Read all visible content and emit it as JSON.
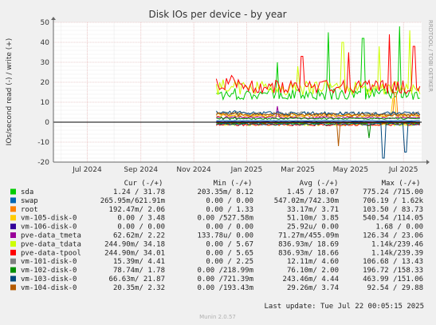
{
  "chart_data": {
    "type": "line",
    "title": "Disk IOs per device - by year",
    "ylabel": "IOs/second read (-) / write (+)",
    "side_label": "RRDTOOL / TOBI OETIKER",
    "ylim": [
      -20,
      50
    ],
    "yticks": [
      50,
      40,
      30,
      20,
      10,
      0,
      -10,
      -20
    ],
    "x_ticks": [
      "Jul 2024",
      "Sep 2024",
      "Nov 2024",
      "Jan 2025",
      "Mar 2025",
      "May 2025",
      "Jul 2025"
    ],
    "x_start": "2024-05-23",
    "x_end": "2025-07-22",
    "data_start": "2024-11-27",
    "grid": true,
    "columns": {
      "cur": "Cur (-/+)",
      "min": "Min (-/+)",
      "avg": "Avg (-/+)",
      "max": "Max (-/+)"
    },
    "series": [
      {
        "name": "sda",
        "color": "#00cc00",
        "cur": "1.24 / 31.78",
        "min": "203.35m/  8.12",
        "avg": "1.45 / 18.07",
        "max": "775.24 /715.00",
        "level": 14,
        "read_level": 0.3,
        "spikes": [
          [
            0.3,
            30
          ],
          [
            0.55,
            45
          ],
          [
            0.72,
            42
          ],
          [
            0.9,
            48
          ]
        ]
      },
      {
        "name": "swap",
        "color": "#0066b3",
        "cur": "265.95m/621.91m",
        "min": "0.00 /  0.00",
        "avg": "547.02m/742.30m",
        "max": "706.19 /  1.62k",
        "level": 0.8,
        "read_level": 0.3,
        "spikes": []
      },
      {
        "name": "root",
        "color": "#ff8000",
        "cur": "192.47m/  2.06",
        "min": "0.00 /  1.33",
        "avg": "33.17m/  3.71",
        "max": "103.50 / 83.73",
        "level": 3,
        "read_level": 0.1,
        "spikes": [
          [
            0.88,
            15
          ]
        ]
      },
      {
        "name": "vm-105-disk-0",
        "color": "#ffcc00",
        "cur": "0.00 /  3.48",
        "min": "0.00 /527.58m",
        "avg": "51.10m/  3.85",
        "max": "540.54 /114.05",
        "level": 3.5,
        "read_level": 0.2,
        "spikes": [
          [
            0.87,
            12
          ]
        ]
      },
      {
        "name": "vm-106-disk-0",
        "color": "#330099",
        "cur": "0.00 /  0.00",
        "min": "0.00 /  0.00",
        "avg": "25.92u/  0.00",
        "max": "1.68 /  0.00",
        "level": 0.2,
        "read_level": 0,
        "spikes": []
      },
      {
        "name": "pve-data_tmeta",
        "color": "#990099",
        "cur": "62.62m/  2.22",
        "min": "133.78u/  0.00",
        "avg": "71.27m/455.09m",
        "max": "126.34 / 23.06",
        "level": 2.2,
        "read_level": 0.4,
        "spikes": [
          [
            0.3,
            8
          ]
        ]
      },
      {
        "name": "pve-data_tdata",
        "color": "#ccff00",
        "cur": "244.90m/ 34.18",
        "min": "0.00 /  5.67",
        "avg": "836.93m/ 18.69",
        "max": "1.14k/239.46",
        "level": 17,
        "read_level": 1.2,
        "spikes": [
          [
            0.4,
            28
          ],
          [
            0.62,
            40
          ],
          [
            0.8,
            38
          ],
          [
            0.95,
            46
          ]
        ]
      },
      {
        "name": "pve-data-tpool",
        "color": "#ff0000",
        "cur": "244.90m/ 34.01",
        "min": "0.00 /  5.65",
        "avg": "836.93m/ 18.66",
        "max": "1.14k/239.39",
        "level": 17.5,
        "read_level": 1.2,
        "spikes": [
          [
            0.42,
            33
          ],
          [
            0.65,
            35
          ],
          [
            0.85,
            44
          ],
          [
            0.97,
            38
          ]
        ]
      },
      {
        "name": "vm-101-disk-0",
        "color": "#808080",
        "cur": "15.39m/  4.41",
        "min": "0.00 /  2.25",
        "avg": "12.11m/  4.60",
        "max": "106.68 / 13.43",
        "level": 4.4,
        "read_level": 0.1,
        "spikes": []
      },
      {
        "name": "vm-102-disk-0",
        "color": "#008f00",
        "cur": "78.74m/  1.78",
        "min": "0.00 /218.99m",
        "avg": "76.10m/  2.00",
        "max": "196.72 /158.33",
        "level": 1.8,
        "read_level": 0.5,
        "spikes": [
          [
            0.75,
            -8
          ]
        ]
      },
      {
        "name": "vm-103-disk-0",
        "color": "#00487d",
        "cur": "66.63m/ 21.87",
        "min": "0.00 /721.39m",
        "avg": "243.46m/  4.44",
        "max": "463.99 /151.06",
        "level": 4.4,
        "read_level": 1.0,
        "spikes": [
          [
            0.82,
            -18
          ],
          [
            0.93,
            -15
          ]
        ]
      },
      {
        "name": "vm-104-disk-0",
        "color": "#b35a00",
        "cur": "20.35m/  2.32",
        "min": "0.00 /193.43m",
        "avg": "29.26m/  3.74",
        "max": "92.54 / 29.88",
        "level": 3.7,
        "read_level": 0.2,
        "spikes": [
          [
            0.6,
            -12
          ]
        ]
      }
    ]
  },
  "footer": {
    "last_update": "Last update: Tue Jul 22 00:05:15 2025",
    "version": "Munin 2.0.57"
  }
}
